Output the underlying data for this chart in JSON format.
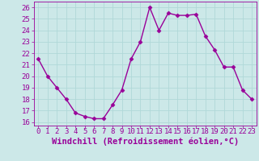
{
  "x": [
    0,
    1,
    2,
    3,
    4,
    5,
    6,
    7,
    8,
    9,
    10,
    11,
    12,
    13,
    14,
    15,
    16,
    17,
    18,
    19,
    20,
    21,
    22,
    23
  ],
  "y": [
    21.5,
    20.0,
    19.0,
    18.0,
    16.8,
    16.5,
    16.3,
    16.3,
    17.5,
    18.8,
    21.5,
    23.0,
    26.0,
    24.0,
    25.5,
    25.3,
    25.3,
    25.4,
    23.5,
    22.3,
    20.8,
    20.8,
    18.8,
    18.0
  ],
  "line_color": "#990099",
  "marker": "D",
  "marker_size": 2.5,
  "linewidth": 1.0,
  "xlabel": "Windchill (Refroidissement éolien,°C)",
  "xticks": [
    0,
    1,
    2,
    3,
    4,
    5,
    6,
    7,
    8,
    9,
    10,
    11,
    12,
    13,
    14,
    15,
    16,
    17,
    18,
    19,
    20,
    21,
    22,
    23
  ],
  "yticks": [
    16,
    17,
    18,
    19,
    20,
    21,
    22,
    23,
    24,
    25,
    26
  ],
  "ylim": [
    15.7,
    26.5
  ],
  "xlim": [
    -0.5,
    23.5
  ],
  "background_color": "#cce8e8",
  "grid_color": "#aacccc",
  "tick_fontsize": 6.5,
  "xlabel_fontsize": 7.5
}
